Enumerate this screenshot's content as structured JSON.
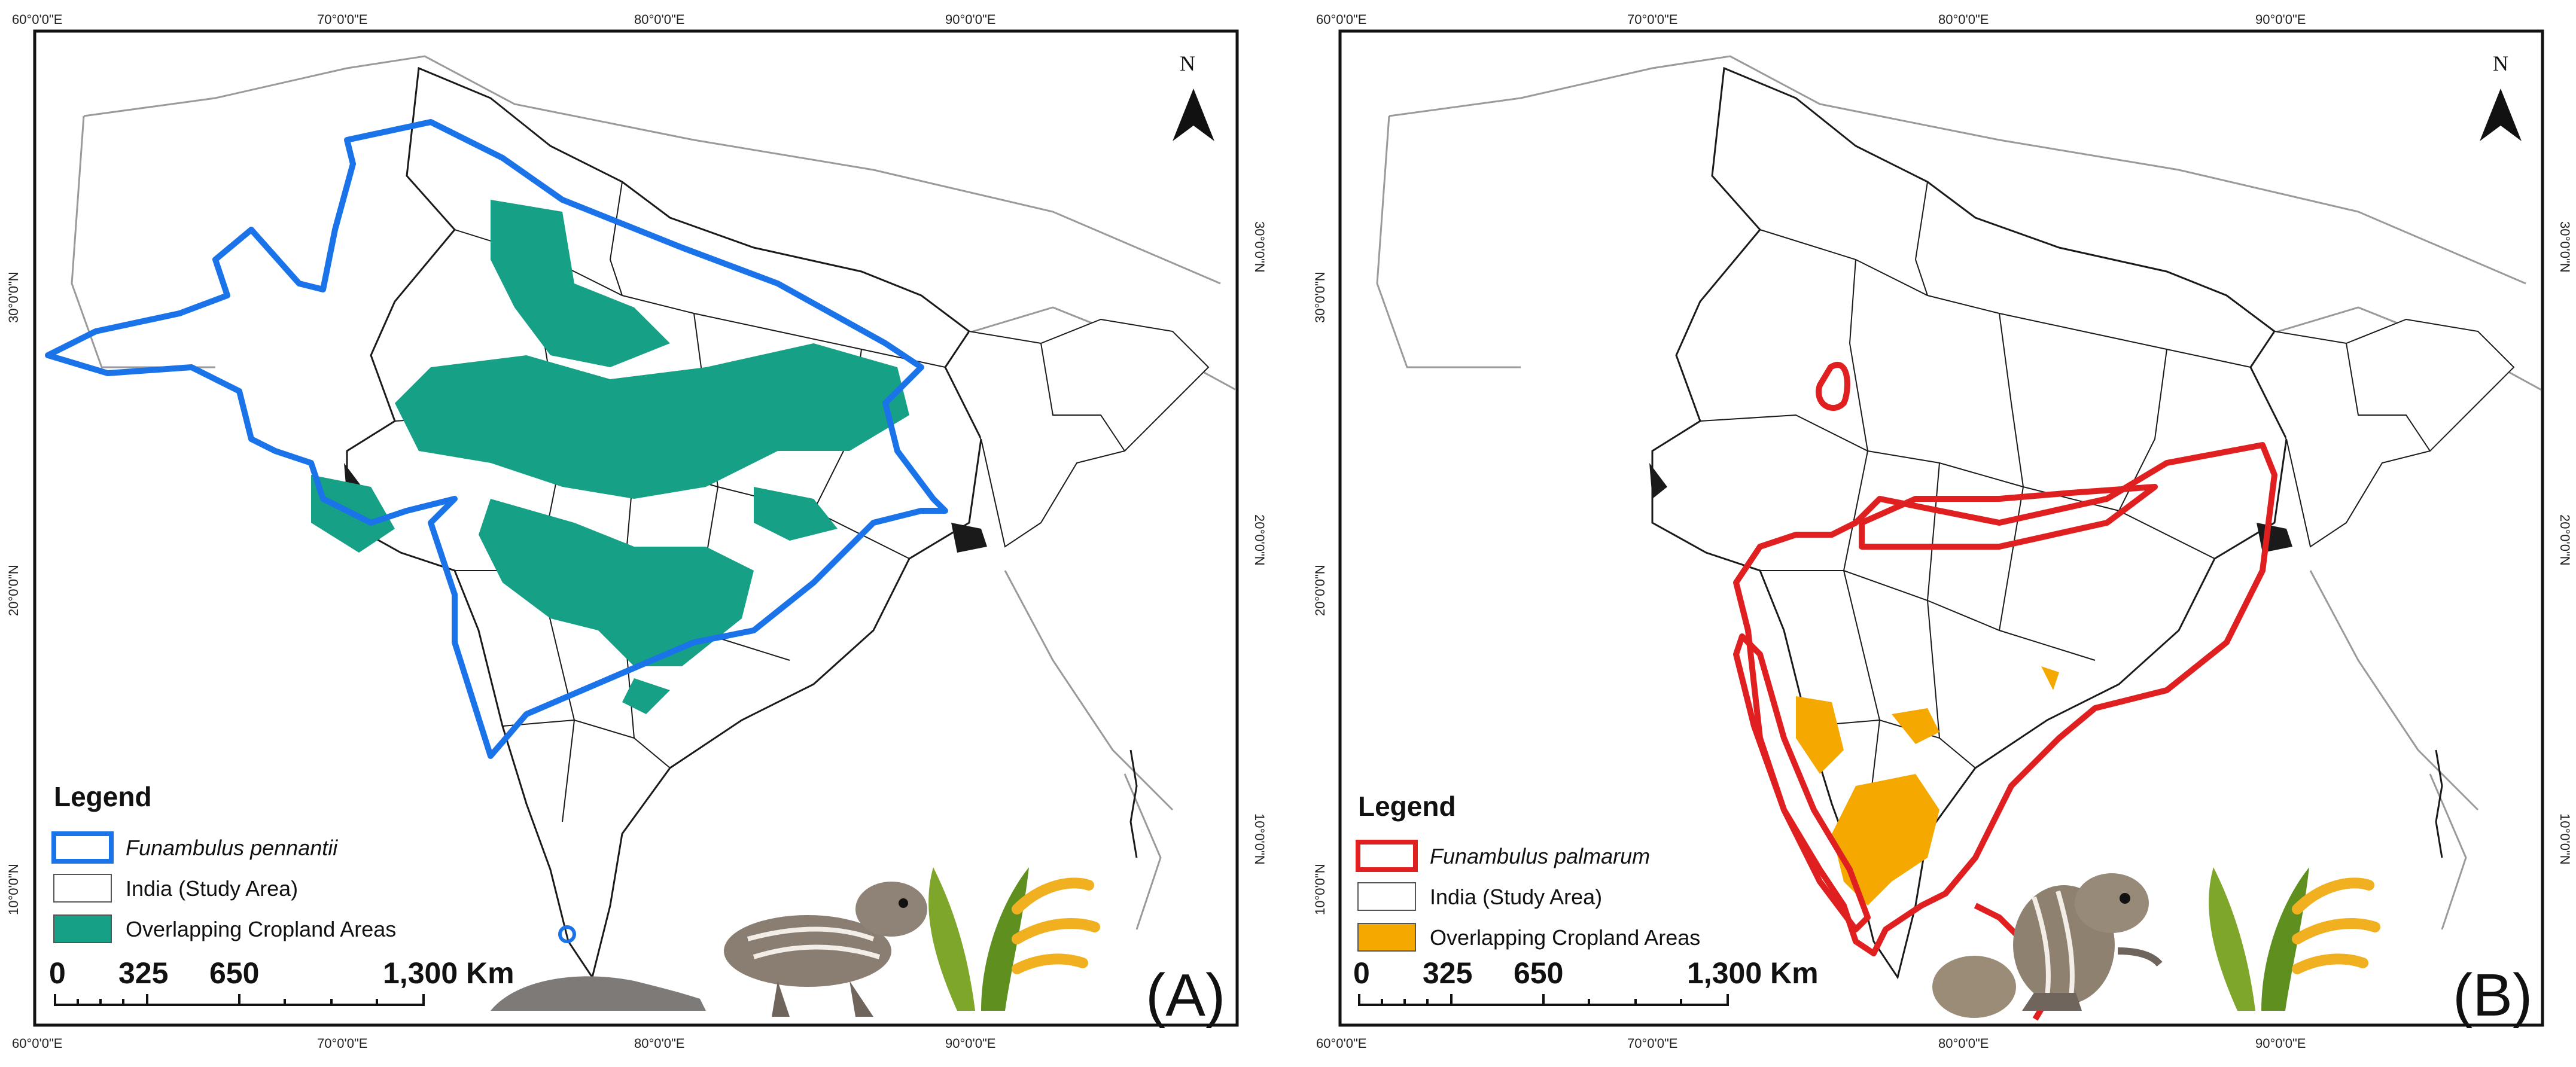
{
  "panels": [
    {
      "label": "(A)",
      "coords": {
        "top": [
          "60°0'0\"E",
          "70°0'0\"E",
          "80°0'0\"E",
          "90°0'0\"E"
        ],
        "bottom": [
          "60°0'0\"E",
          "70°0'0\"E",
          "80°0'0\"E",
          "90°0'0\"E"
        ],
        "left": [
          "30°0'0\"N",
          "20°0'0\"N",
          "10°0'0\"N"
        ],
        "right": [
          "30°0'0\"N",
          "20°0'0\"N",
          "10°0'0\"N"
        ]
      },
      "north": "N",
      "legend": {
        "title": "Legend",
        "species": "Funambulus pennantii",
        "study_area": "India (Study Area)",
        "overlap": "Overlapping Cropland Areas"
      },
      "scale": {
        "s0": "0",
        "s1": "325",
        "s2": "650",
        "s3": "1,300 Km"
      },
      "colors": {
        "range": "#1a73e8",
        "overlap": "#16a085"
      }
    },
    {
      "label": "(B)",
      "coords": {
        "top": [
          "60°0'0\"E",
          "70°0'0\"E",
          "80°0'0\"E",
          "90°0'0\"E"
        ],
        "bottom": [
          "60°0'0\"E",
          "70°0'0\"E",
          "80°0'0\"E",
          "90°0'0\"E"
        ],
        "left": [
          "30°0'0\"N",
          "20°0'0\"N",
          "10°0'0\"N"
        ],
        "right": [
          "30°0'0\"N",
          "20°0'0\"N",
          "10°0'0\"N"
        ]
      },
      "north": "N",
      "legend": {
        "title": "Legend",
        "species": "Funambulus palmarum",
        "study_area": "India (Study Area)",
        "overlap": "Overlapping Cropland Areas"
      },
      "scale": {
        "s0": "0",
        "s1": "325",
        "s2": "650",
        "s3": "1,300 Km"
      },
      "colors": {
        "range": "#e02020",
        "overlap": "#f5a800"
      }
    }
  ]
}
